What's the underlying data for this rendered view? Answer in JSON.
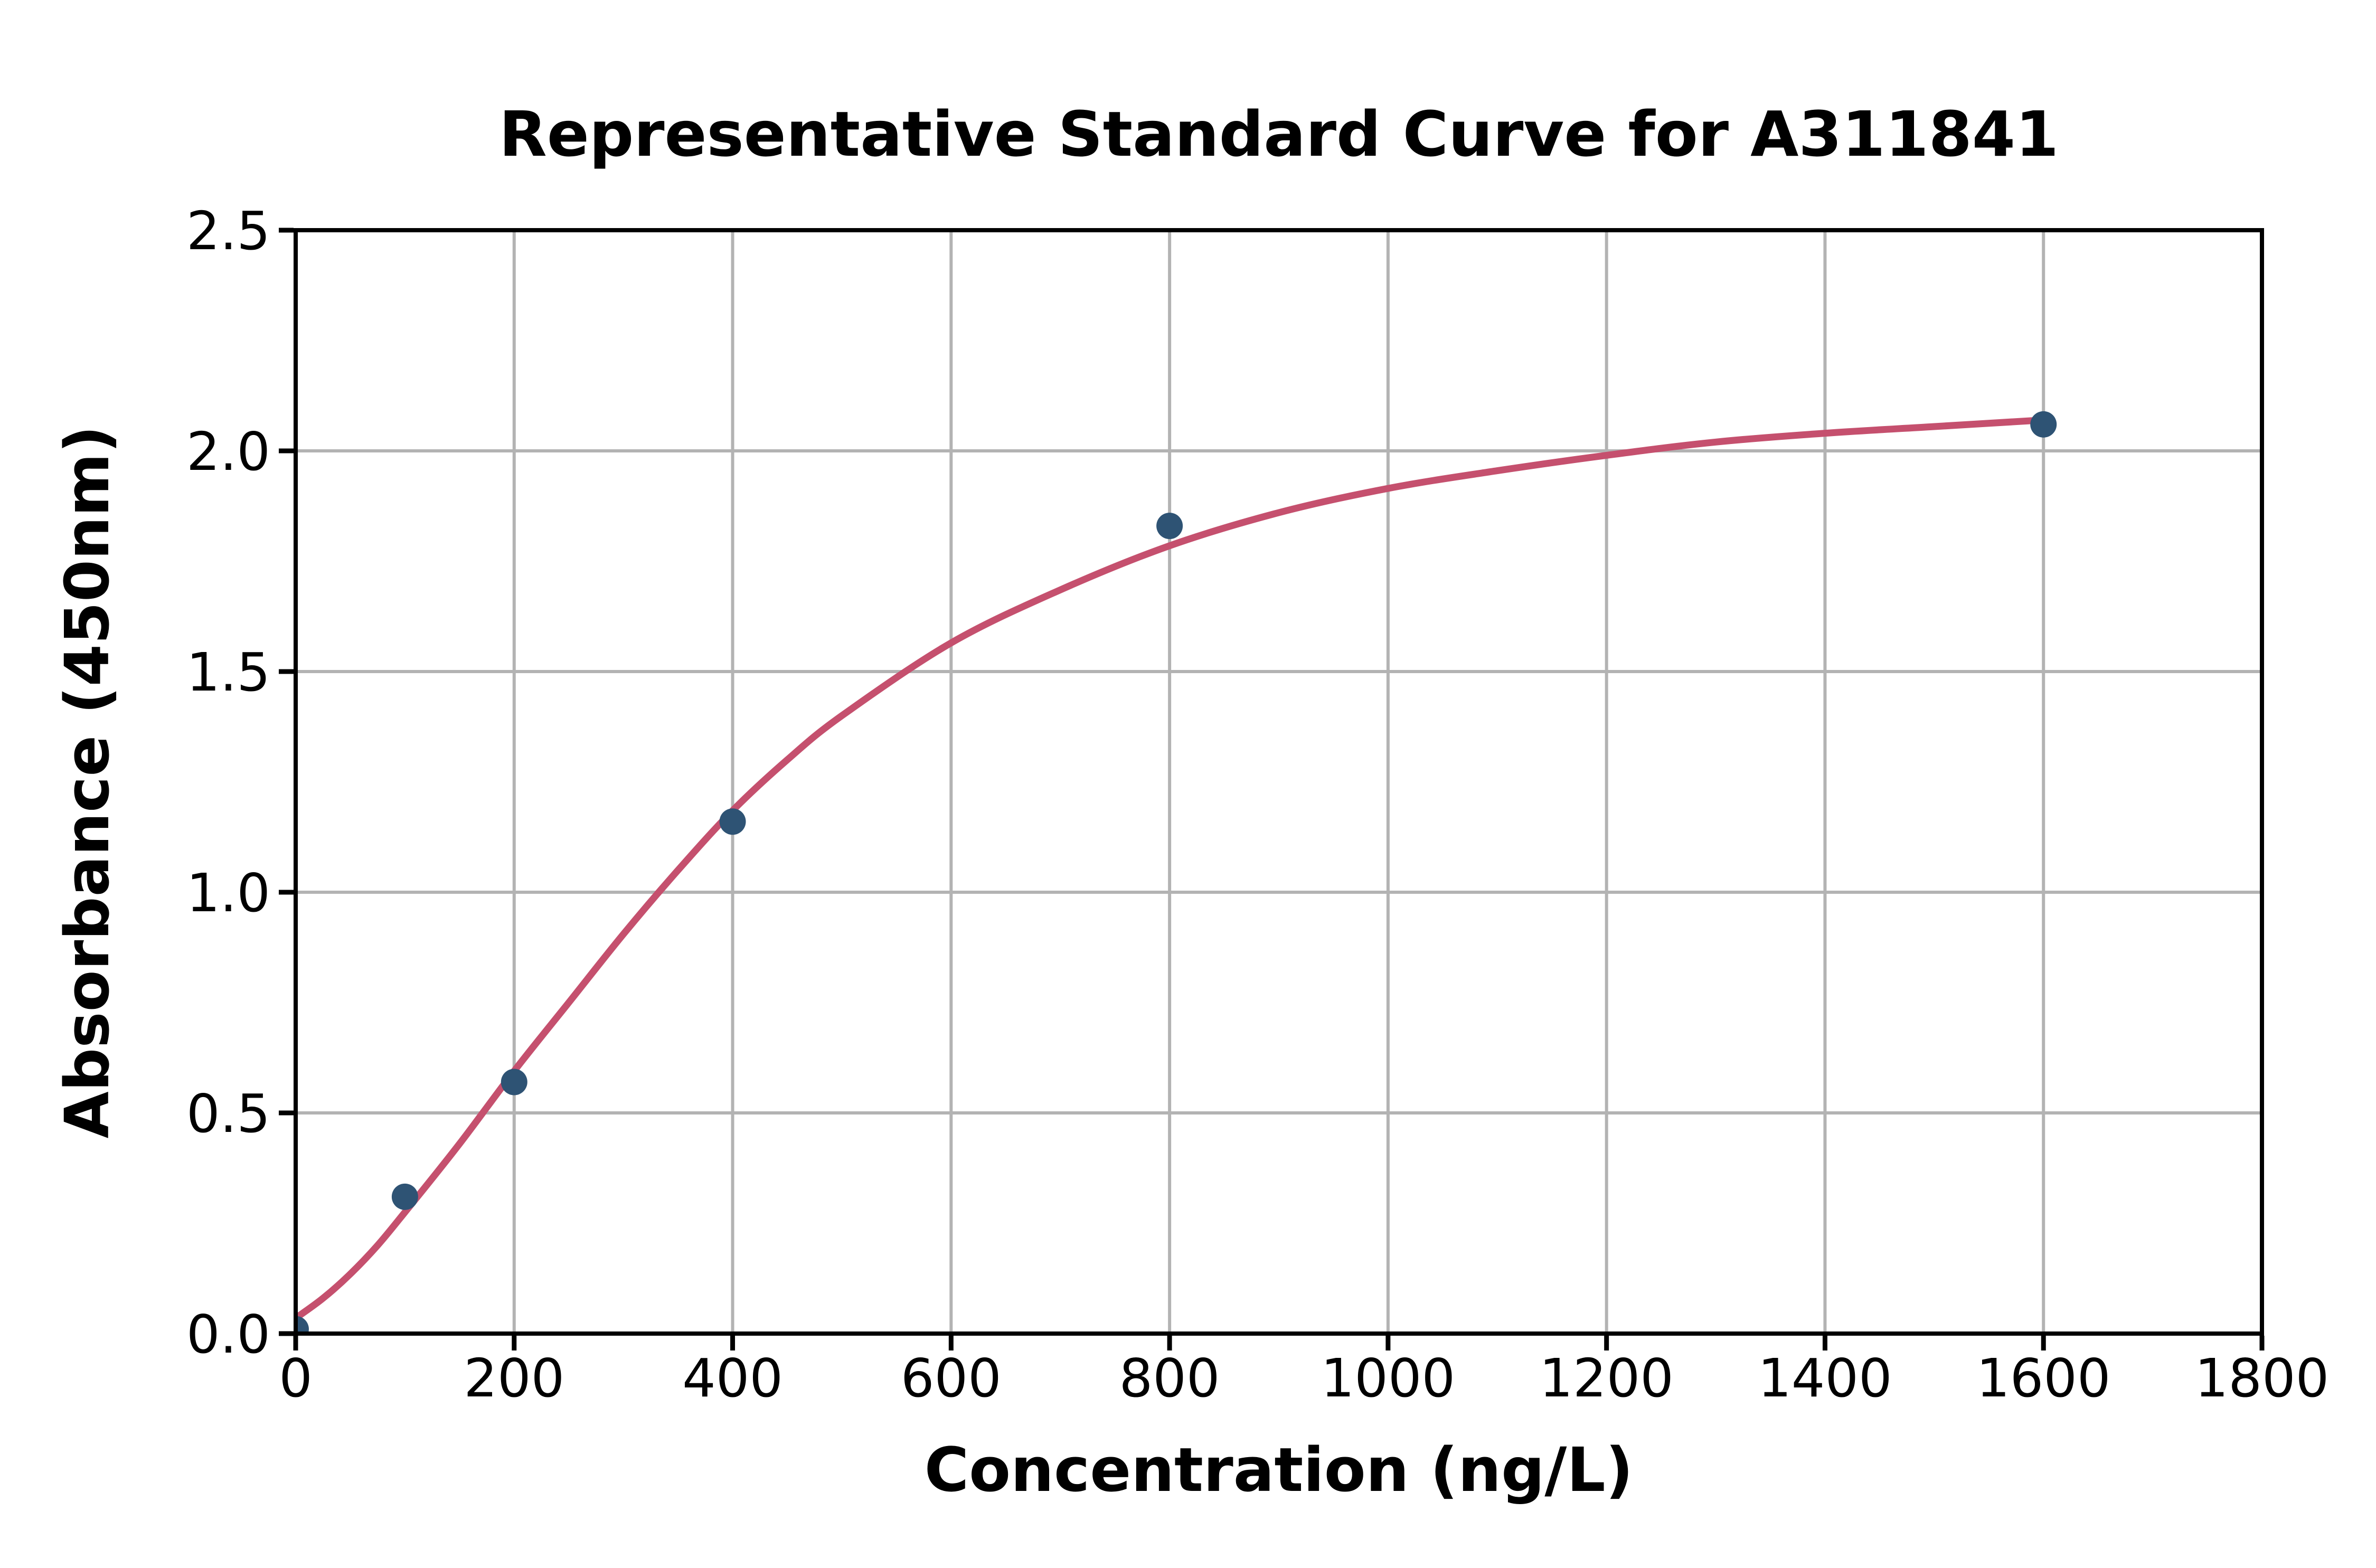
{
  "chart_data": {
    "type": "scatter",
    "title": "Representative Standard Curve for A311841",
    "xlabel": "Concentration (ng/L)",
    "ylabel": "Absorbance (450nm)",
    "xlim": [
      0,
      1800
    ],
    "ylim": [
      0.0,
      2.5
    ],
    "grid": true,
    "legend": "none",
    "xticks": [
      0,
      200,
      400,
      600,
      800,
      1000,
      1200,
      1400,
      1600,
      1800
    ],
    "xtick_labels": [
      "0",
      "200",
      "400",
      "600",
      "800",
      "1000",
      "1200",
      "1400",
      "1600",
      "1800"
    ],
    "yticks": [
      0.0,
      0.5,
      1.0,
      1.5,
      2.0,
      2.5
    ],
    "ytick_labels": [
      "0.0",
      "0.5",
      "1.0",
      "1.5",
      "2.0",
      "2.5"
    ],
    "points": {
      "x": [
        0,
        100,
        200,
        400,
        800,
        1600
      ],
      "y": [
        0.01,
        0.31,
        0.57,
        1.16,
        1.83,
        2.06
      ]
    },
    "fit_curve": {
      "x": [
        0,
        25,
        50,
        75,
        100,
        150,
        200,
        250,
        300,
        350,
        400,
        450,
        500,
        600,
        700,
        800,
        900,
        1000,
        1100,
        1200,
        1300,
        1400,
        1500,
        1600
      ],
      "y": [
        0.035,
        0.08,
        0.135,
        0.2,
        0.275,
        0.43,
        0.595,
        0.75,
        0.905,
        1.05,
        1.185,
        1.3,
        1.4,
        1.565,
        1.685,
        1.785,
        1.86,
        1.915,
        1.955,
        1.99,
        2.02,
        2.04,
        2.055,
        2.07
      ]
    },
    "colors": {
      "point": "#2e5374",
      "curve": "#c5506e",
      "grid": "#b3b3b3",
      "axis": "#000000",
      "background": "#ffffff"
    }
  }
}
